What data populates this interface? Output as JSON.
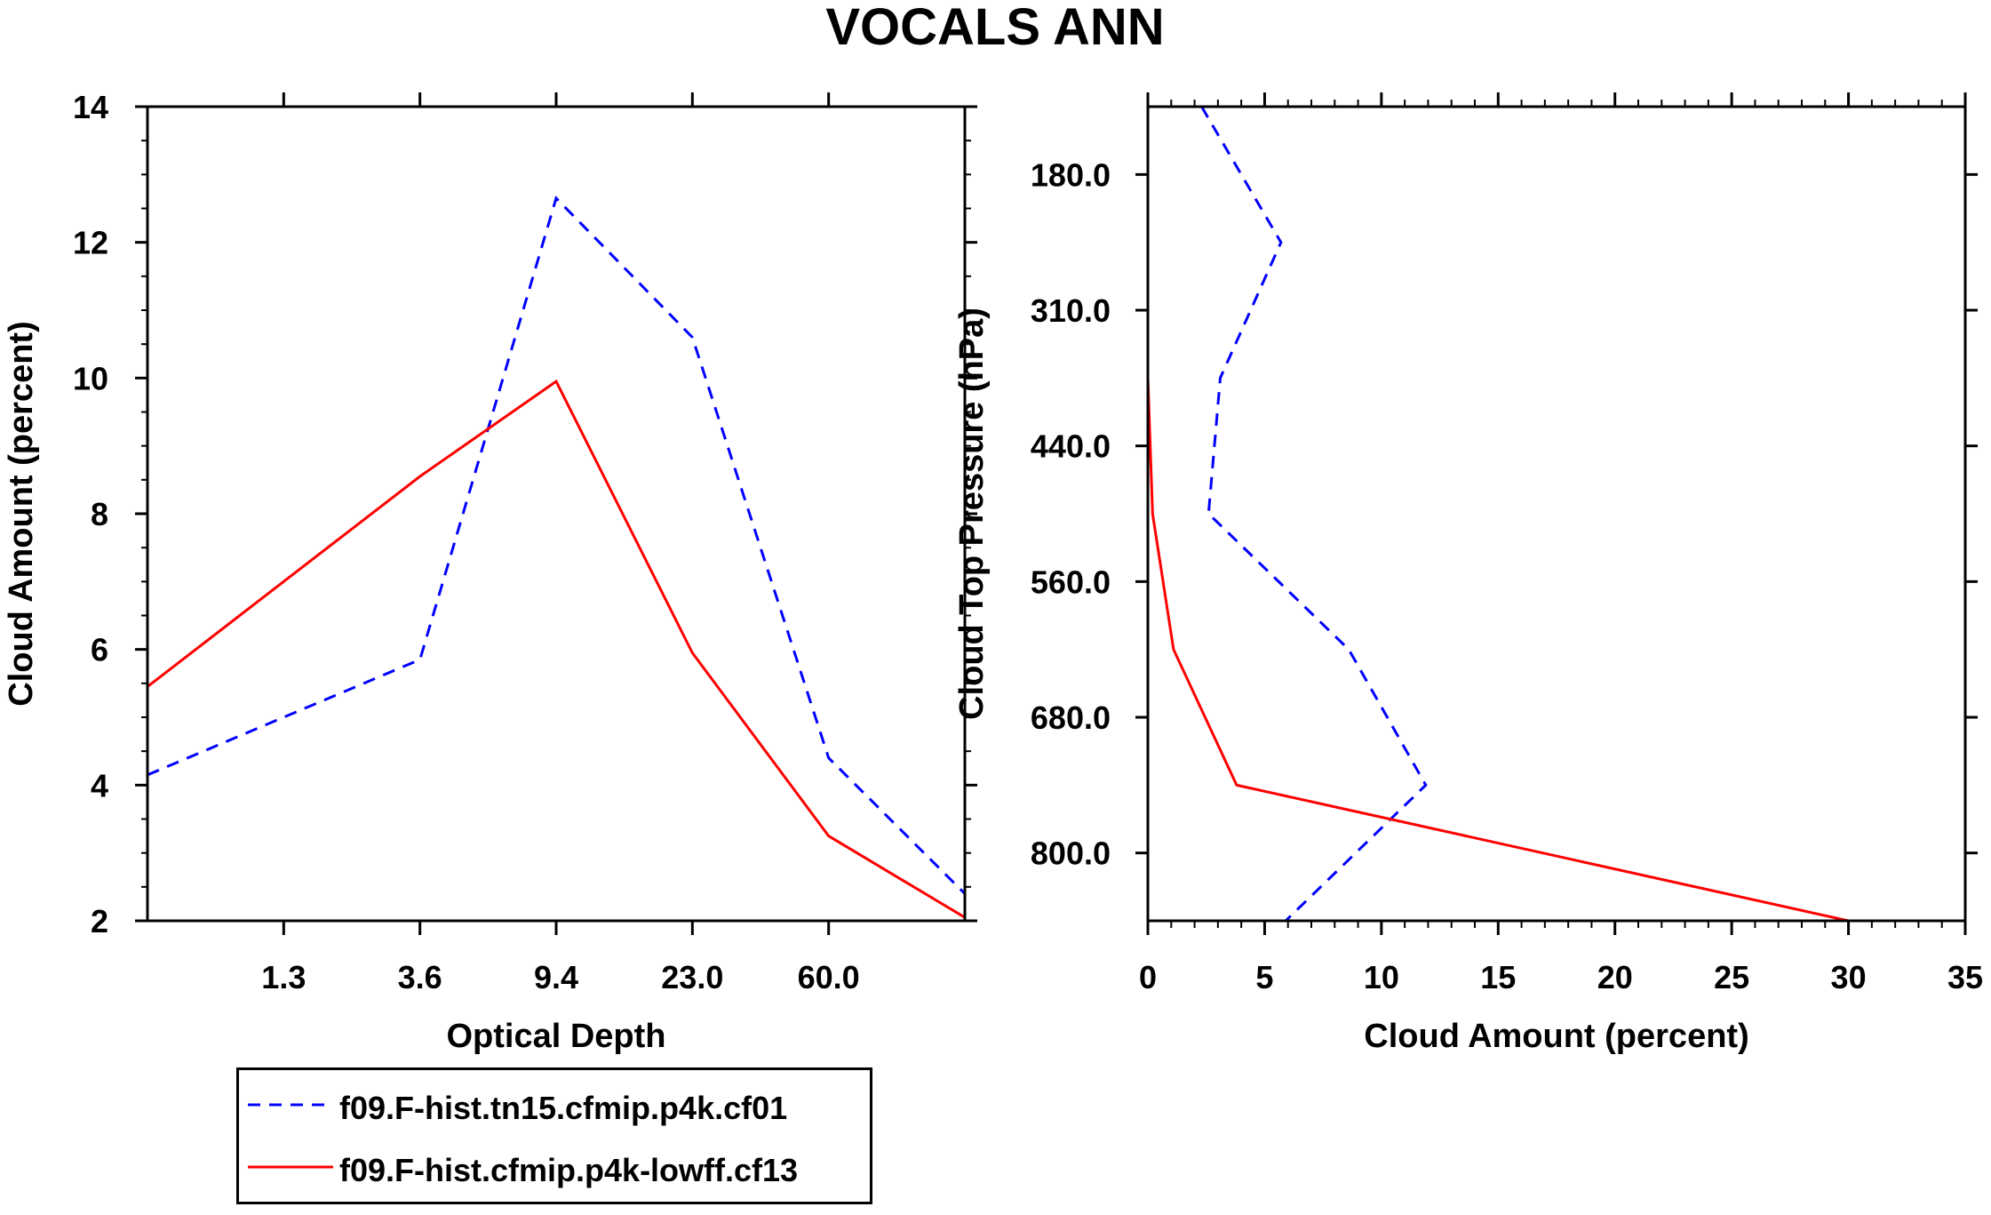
{
  "figure_title": "VOCALS ANN",
  "chart_data": [
    {
      "type": "line",
      "title": "VOCALS ANN",
      "xlabel": "Optical Depth",
      "ylabel": "Cloud Amount (percent)",
      "x_bins": [
        1,
        2,
        3,
        4,
        5,
        6
      ],
      "x_ticks": [
        {
          "pos": 1.5,
          "label": "1.3"
        },
        {
          "pos": 2.5,
          "label": "3.6"
        },
        {
          "pos": 3.5,
          "label": "9.4"
        },
        {
          "pos": 4.5,
          "label": "23.0"
        },
        {
          "pos": 5.5,
          "label": "60.0"
        }
      ],
      "xlim": [
        0.5,
        6.5
      ],
      "ylim": [
        2,
        14
      ],
      "y_ticks": [
        2,
        4,
        6,
        8,
        10,
        12,
        14
      ],
      "series": [
        {
          "name": "f09.F-hist.tn15.cfmip.p4k.cf01",
          "color": "#0000ff",
          "dash": "dashed",
          "x": [
            0.5,
            1.5,
            2.5,
            3.5,
            4.5,
            5.5,
            6.5
          ],
          "y": [
            4.15,
            5.0,
            5.85,
            12.65,
            10.6,
            4.4,
            2.4
          ]
        },
        {
          "name": "f09.F-hist.cfmip.p4k-lowff.cf13",
          "color": "#ff0000",
          "dash": "solid",
          "x": [
            0.5,
            1.5,
            2.5,
            3.5,
            4.5,
            5.5,
            6.5
          ],
          "y": [
            5.45,
            7.0,
            8.55,
            9.95,
            5.95,
            3.25,
            2.05
          ]
        }
      ]
    },
    {
      "type": "line",
      "xlabel": "Cloud Amount (percent)",
      "ylabel": "Cloud Top Pressure (hPa)",
      "xlim": [
        0,
        35
      ],
      "x_ticks": [
        0,
        5,
        10,
        15,
        20,
        25,
        30,
        35
      ],
      "ylim": [
        0,
        12
      ],
      "y_ticks": [
        {
          "pos": 1,
          "label": "180.0"
        },
        {
          "pos": 3,
          "label": "310.0"
        },
        {
          "pos": 5,
          "label": "440.0"
        },
        {
          "pos": 7,
          "label": "560.0"
        },
        {
          "pos": 9,
          "label": "680.0"
        },
        {
          "pos": 11,
          "label": "800.0"
        }
      ],
      "series": [
        {
          "name": "f09.F-hist.tn15.cfmip.p4k.cf01",
          "color": "#0000ff",
          "dash": "dashed",
          "x": [
            2.3,
            5.7,
            3.1,
            2.6,
            8.6,
            11.9,
            5.9
          ],
          "y": [
            0,
            2,
            4,
            6,
            8,
            10,
            12
          ]
        },
        {
          "name": "f09.F-hist.cfmip.p4k-lowff.cf13",
          "color": "#ff0000",
          "dash": "solid",
          "x": [
            0,
            0,
            0,
            0.2,
            1.1,
            3.8,
            30.0
          ],
          "y": [
            0,
            2,
            4,
            6,
            8,
            10,
            12
          ]
        }
      ]
    }
  ],
  "legend": {
    "entries": [
      {
        "label": "f09.F-hist.tn15.cfmip.p4k.cf01",
        "color": "#0000ff",
        "dash": "dashed"
      },
      {
        "label": "f09.F-hist.cfmip.p4k-lowff.cf13",
        "color": "#ff0000",
        "dash": "solid"
      }
    ]
  }
}
